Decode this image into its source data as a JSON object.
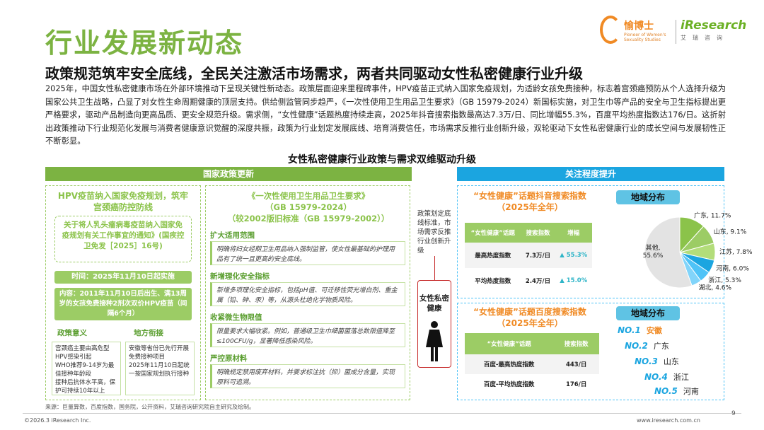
{
  "title": "行业发展新动态",
  "logos": {
    "yuboshi_name": "愉博士",
    "yuboshi_sub": "Pioneer of Women's Sexuality Studies",
    "iresearch_name": "iResearch",
    "iresearch_sub": "艾瑞咨询"
  },
  "subtitle": "政策规范筑牢安全底线，全民关注激活市场需求，两者共同驱动女性私密健康行业升级",
  "paragraph": "2025年，中国女性私密健康市场在外部环境推动下呈现关键性新动态。政策层面迎来里程碑事件，HPV疫苗正式纳入国家免疫规划，为适龄女孩免费接种，标志着宫颈癌预防从个人选择升级为国家公共卫生战略，凸显了对女性生命周期健康的顶层支持。供给侧监管同步趋严，《一次性使用卫生用品卫生要求》（GB 15979-2024）新国标实施，对卫生巾等产品的安全与卫生指标提出更严格要求，驱动产品制造向更高品质、更安全规范升级。需求侧，“女性健康”话题热度持续走高，2025年抖音搜索指数最高达7.3万/日、同比增幅55.3%，百度平均热度指数达176/日。这折射出政策推动下行业规范化发展与消费者健康意识觉醒的深度共振，政策为行业划定发展底线、培育消费信任，市场需求反推行业创新升级，双轮驱动下女性私密健康行业的成长空间与发展韧性正不断彰显。",
  "figure_title": "女性私密健康行业政策与需求双维驱动升级",
  "policy": {
    "header": "国家政策更新",
    "hpv": {
      "title": "HPV疫苗纳入国家免疫规划，筑牢宫颈癌防控防线",
      "notice": "关于将人乳头瘤病毒疫苗纳入国家免疫规划有关工作事宜的通知》(国疾控卫免发［2025］16号)",
      "time": "时间：2025年11月10日起实施",
      "content": "内容：2011年11月10日后出生、满13周岁的女孩免费接种2剂次双价HPV疫苗（间隔6个月）",
      "meaning_title": "政策意义",
      "meaning_items": [
        "宫颈癌主要由高危型HPV感染引起",
        "WHO推荐9-14岁为最佳接种年龄段",
        "接种后抗体水平高，保护可持续10年以上"
      ],
      "local_title": "地方衔接",
      "local_items": [
        "安徽等省份已先行开展免费接种项目",
        "2025年11月10日起统一按国家规划执行接种"
      ]
    },
    "gb": {
      "title1": "《一次性使用卫生用品卫生要求》",
      "title2": "（GB 15979-2024）",
      "title3": "（较2002版旧标准（GB 15979-2002））",
      "items": [
        {
          "title": "扩大适用范围",
          "body": "明确将妇女经期卫生用品纳入强制监管，使女性最基础的护理用品有了统一且更高的安全底线。"
        },
        {
          "title": "新增理化安全指标",
          "body": "新增多项理化安全指标，包括pH值、可迁移性荧光增白剂、重金属（铅、砷、汞）等，从源头杜绝化学物质风险。"
        },
        {
          "title": "收紧微生物限值",
          "body": "限量要求大幅收紧。例如，普通级卫生巾细菌菌落总数限值降至≤100CFU/g，显著降低感染风险。"
        },
        {
          "title": "严控原材料",
          "body": "明确规定禁用废弃材料，并要求标注抗（抑）菌成分含量，实现原料可追溯。"
        }
      ]
    }
  },
  "middle": {
    "text": "政策划定底线标准，市场需求反推行业创新升级",
    "label": "女性私密健康"
  },
  "attention": {
    "header": "关注程度提升",
    "douyin": {
      "title1": "“女性健康”话题抖音搜索指数",
      "title2": "（2025年全年）",
      "table_headers": [
        "“女性健康”话题",
        "搜索指数",
        "增幅"
      ],
      "rows": [
        {
          "label": "最高热度指数",
          "value": "7.3万/日",
          "growth": "55.3%"
        },
        {
          "label": "平均热度指数",
          "value": "2.4万/日",
          "growth": "15.0%"
        }
      ]
    },
    "baidu": {
      "title1": "“女性健康”话题百度搜索指数",
      "title2": "（2025年全年）",
      "table_headers": [
        "“女性健康”话题",
        "搜索指数"
      ],
      "rows": [
        {
          "label": "百度-最高热度指数",
          "value": "443/日"
        },
        {
          "label": "百度-平均热度指数",
          "value": "176/日"
        }
      ],
      "region_title": "地域分布",
      "ranks": [
        {
          "no": "NO.1",
          "name": "安徽"
        },
        {
          "no": "NO.2",
          "name": "广东"
        },
        {
          "no": "NO.3",
          "name": "山东"
        },
        {
          "no": "NO.4",
          "name": "浙江"
        },
        {
          "no": "NO.5",
          "name": "河南"
        }
      ]
    },
    "region_title": "地域分布"
  },
  "chart_data": {
    "type": "pie",
    "title": "地域分布",
    "series": [
      {
        "name": "广东",
        "label": "广东, 11.7%",
        "value": 11.7,
        "color": "#8bc34a"
      },
      {
        "name": "山东",
        "label": "山东, 9.1%",
        "value": 9.1,
        "color": "#9ccc65"
      },
      {
        "name": "江苏",
        "label": "江苏, 7.8%",
        "value": 7.8,
        "color": "#b3dd7a"
      },
      {
        "name": "河南",
        "label": "河南, 6.0%",
        "value": 6.0,
        "color": "#1ba5e0"
      },
      {
        "name": "浙江",
        "label": "浙江, 5.3%",
        "value": 5.3,
        "color": "#4fc3f7"
      },
      {
        "name": "湖北",
        "label": "湖北, 4.6%",
        "value": 4.6,
        "color": "#81d4fa"
      },
      {
        "name": "其他",
        "label": "其他, 55.6%",
        "value": 55.6,
        "color": "#e3e3e3"
      }
    ]
  },
  "footer": {
    "source": "来源：巨量算数，百度指数，国务院，公开资料，艾瑞咨询研究院自主研究及绘制。",
    "copyright": "©2026.3 iResearch Inc.",
    "url": "www.iresearch.com.cn",
    "page": "9"
  }
}
